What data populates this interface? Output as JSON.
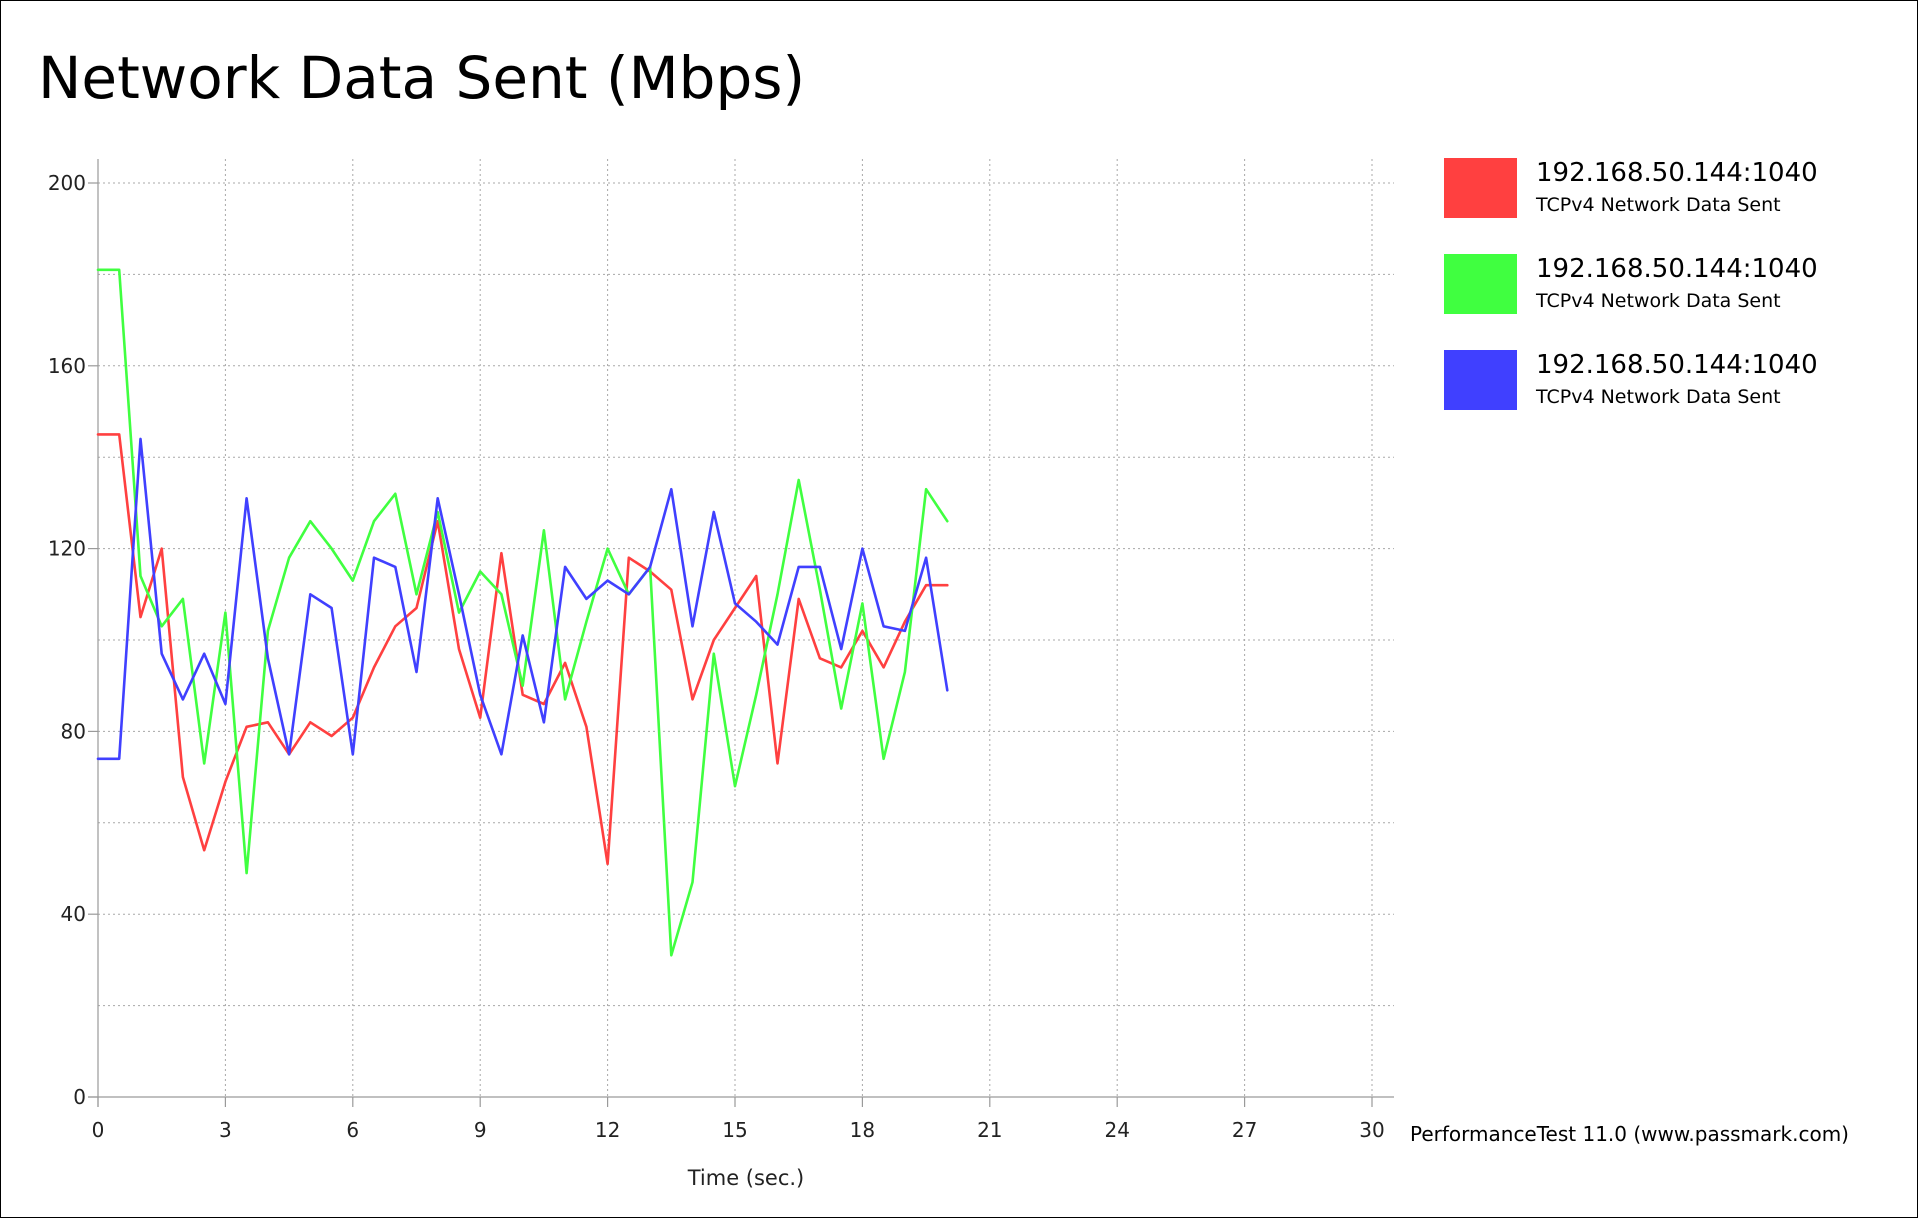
{
  "chart_data": {
    "type": "line",
    "title": "Network Data Sent (Mbps)",
    "xlabel": "Time (sec.)",
    "ylabel": "",
    "xlim": [
      0,
      30
    ],
    "ylim": [
      0,
      200
    ],
    "x_ticks": [
      0,
      3,
      6,
      9,
      12,
      15,
      18,
      21,
      24,
      27,
      30
    ],
    "y_ticks": [
      0,
      40,
      80,
      120,
      160,
      200
    ],
    "grid": true,
    "legend_position": "right",
    "x": [
      0,
      0.5,
      1,
      1.5,
      2,
      2.5,
      3,
      3.5,
      4,
      4.5,
      5,
      5.5,
      6,
      6.5,
      7,
      7.5,
      8,
      8.5,
      9,
      9.5,
      10,
      10.5,
      11,
      11.5,
      12,
      12.5,
      13,
      13.5,
      14,
      14.5,
      15,
      15.5,
      16,
      16.5,
      17,
      17.5,
      18,
      18.5,
      19,
      19.5,
      20
    ],
    "series": [
      {
        "name": "192.168.50.144:1040",
        "description": "TCPv4 Network Data Sent",
        "color": "#ff4040",
        "values": [
          145,
          145,
          105,
          120,
          70,
          54,
          69,
          81,
          82,
          75,
          82,
          79,
          83,
          94,
          103,
          107,
          126,
          98,
          83,
          119,
          88,
          86,
          95,
          81,
          51,
          118,
          115,
          111,
          87,
          100,
          107,
          114,
          73,
          109,
          96,
          94,
          102,
          94,
          104,
          112,
          112
        ]
      },
      {
        "name": "192.168.50.144:1040",
        "description": "TCPv4 Network Data Sent",
        "color": "#40ff40",
        "values": [
          181,
          181,
          114,
          103,
          109,
          73,
          106,
          49,
          102,
          118,
          126,
          120,
          113,
          126,
          132,
          110,
          128,
          106,
          115,
          110,
          90,
          124,
          87,
          104,
          120,
          110,
          116,
          31,
          47,
          97,
          68,
          88,
          110,
          135,
          111,
          85,
          108,
          74,
          93,
          133,
          126
        ]
      },
      {
        "name": "192.168.50.144:1040",
        "description": "TCPv4 Network Data Sent",
        "color": "#4040ff",
        "values": [
          74,
          74,
          144,
          97,
          87,
          97,
          86,
          131,
          96,
          75,
          110,
          107,
          75,
          118,
          116,
          93,
          131,
          110,
          88,
          75,
          101,
          82,
          116,
          109,
          113,
          110,
          116,
          133,
          103,
          128,
          108,
          104,
          99,
          116,
          116,
          98,
          120,
          103,
          102,
          118,
          89
        ]
      }
    ]
  },
  "footer": {
    "credit": "PerformanceTest 11.0 (www.passmark.com)"
  }
}
